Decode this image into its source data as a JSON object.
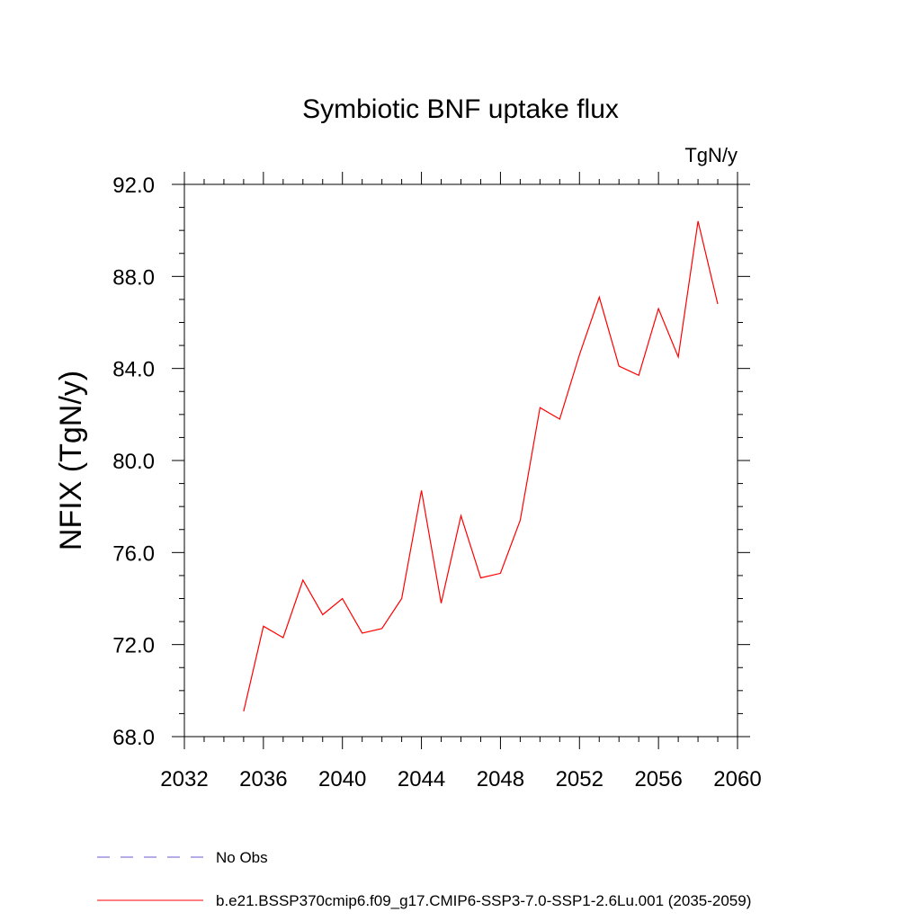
{
  "chart_data": {
    "type": "line",
    "title": "Symbiotic BNF uptake flux",
    "units": "TgN/y",
    "xlabel": "",
    "ylabel": "NFIX  (TgN/y)",
    "xlim": [
      2032,
      2060
    ],
    "ylim": [
      68,
      92
    ],
    "x_ticks": [
      2032,
      2036,
      2040,
      2044,
      2048,
      2052,
      2056,
      2060
    ],
    "x_tick_labels": [
      "2032",
      "2036",
      "2040",
      "2044",
      "2048",
      "2052",
      "2056",
      "2060"
    ],
    "y_ticks": [
      68,
      72,
      76,
      80,
      84,
      88,
      92
    ],
    "y_tick_labels": [
      "68.0",
      "72.0",
      "76.0",
      "80.0",
      "84.0",
      "88.0",
      "92.0"
    ],
    "series": [
      {
        "name": "b.e21.BSSP370cmip6.f09_g17.CMIP6-SSP3-7.0-SSP1-2.6Lu.001 (2035-2059)",
        "color": "#ff0000",
        "style": "solid",
        "x": [
          2035,
          2036,
          2037,
          2038,
          2039,
          2040,
          2041,
          2042,
          2043,
          2044,
          2045,
          2046,
          2047,
          2048,
          2049,
          2050,
          2051,
          2052,
          2053,
          2054,
          2055,
          2056,
          2057,
          2058,
          2059
        ],
        "values": [
          69.1,
          72.8,
          72.3,
          74.8,
          73.3,
          74.0,
          72.5,
          72.7,
          74.0,
          78.7,
          73.8,
          77.6,
          74.9,
          75.1,
          77.4,
          82.3,
          81.8,
          84.6,
          87.1,
          84.1,
          83.7,
          86.6,
          84.5,
          90.4,
          86.8
        ]
      }
    ],
    "legend": [
      {
        "label": "No Obs",
        "color": "#6a5acd",
        "style": "dashed"
      },
      {
        "label": "b.e21.BSSP370cmip6.f09_g17.CMIP6-SSP3-7.0-SSP1-2.6Lu.001 (2035-2059)",
        "color": "#ff0000",
        "style": "solid"
      }
    ],
    "legend_position": "bottom"
  }
}
